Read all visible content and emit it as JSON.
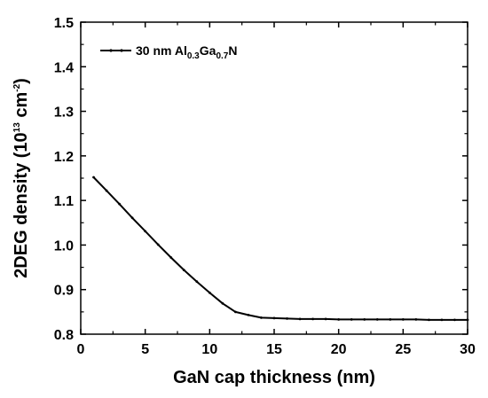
{
  "chart_data": {
    "type": "line",
    "xlabel": "GaN cap thickness (nm)",
    "ylabel": {
      "prefix": "2DEG density (10",
      "exponent": "13",
      "unit": " cm",
      "unit_exponent": "-2",
      "suffix": ")"
    },
    "xlim": [
      0,
      30
    ],
    "ylim": [
      0.8,
      1.5
    ],
    "x_ticks": [
      0,
      5,
      10,
      15,
      20,
      25,
      30
    ],
    "x_tick_labels": [
      "0",
      "5",
      "10",
      "15",
      "20",
      "25",
      "30"
    ],
    "y_ticks": [
      0.8,
      0.9,
      1.0,
      1.1,
      1.2,
      1.3,
      1.4,
      1.5
    ],
    "y_tick_labels": [
      "0.8",
      "0.9",
      "1.0",
      "1.1",
      "1.2",
      "1.3",
      "1.4",
      "1.5"
    ],
    "grid": false,
    "legend_position": "top-left",
    "series": [
      {
        "name": {
          "base": "30 nm Al",
          "sub1": "0.3",
          "mid": "Ga",
          "sub2": "0.7",
          "end": "N"
        },
        "color": "#000000",
        "x": [
          1,
          2,
          3,
          4,
          5,
          6,
          7,
          8,
          9,
          10,
          11,
          12,
          13,
          14,
          15,
          16,
          17,
          18,
          19,
          20,
          21,
          22,
          23,
          24,
          25,
          26,
          27,
          28,
          29,
          30
        ],
        "y": [
          1.152,
          1.122,
          1.092,
          1.061,
          1.031,
          1.001,
          0.972,
          0.944,
          0.918,
          0.893,
          0.869,
          0.85,
          0.843,
          0.837,
          0.836,
          0.835,
          0.834,
          0.834,
          0.834,
          0.833,
          0.833,
          0.833,
          0.833,
          0.833,
          0.833,
          0.833,
          0.832,
          0.832,
          0.832,
          0.832
        ]
      }
    ]
  }
}
